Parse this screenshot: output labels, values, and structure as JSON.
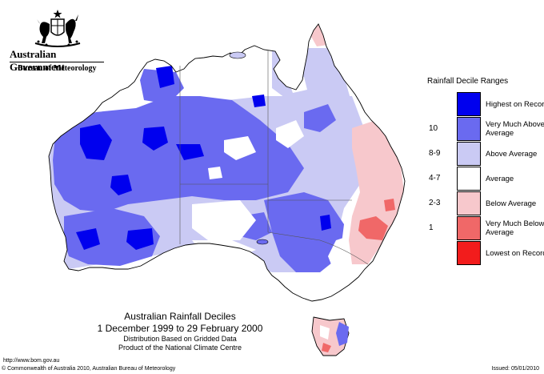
{
  "header": {
    "government": "Australian Government",
    "bureau": "Bureau of Meteorology"
  },
  "title": {
    "main": "Australian Rainfall Deciles",
    "dates": "1 December 1999 to 29 February 2000",
    "line3": "Distribution Based on Gridded Data",
    "line4": "Product of the National Climate Centre"
  },
  "legend": {
    "title": "Rainfall Decile Ranges",
    "items": [
      {
        "range": "",
        "label": "Highest on Record",
        "color": "#0000ee"
      },
      {
        "range": "10",
        "label": "Very Much Above Average",
        "color": "#6a6af0"
      },
      {
        "range": "8-9",
        "label": "Above Average",
        "color": "#cacaf4"
      },
      {
        "range": "4-7",
        "label": "Average",
        "color": "#ffffff"
      },
      {
        "range": "2-3",
        "label": "Below Average",
        "color": "#f7c8cc"
      },
      {
        "range": "1",
        "label": "Very Much Below Average",
        "color": "#f06868"
      },
      {
        "range": "",
        "label": "Lowest on Record",
        "color": "#f21c1c"
      }
    ]
  },
  "footer": {
    "url": "http://www.bom.gov.au",
    "copyright": "© Commonwealth of Australia 2010, Australian Bureau of Meteorology",
    "issued": "Issued: 05/01/2010"
  },
  "map_colors": {
    "highest": "#0000ee",
    "very_much_above": "#6a6af0",
    "above": "#cacaf4",
    "average": "#ffffff",
    "below": "#f7c8cc",
    "very_much_below": "#f06868",
    "coast": "#000000",
    "borders": "#555555"
  }
}
